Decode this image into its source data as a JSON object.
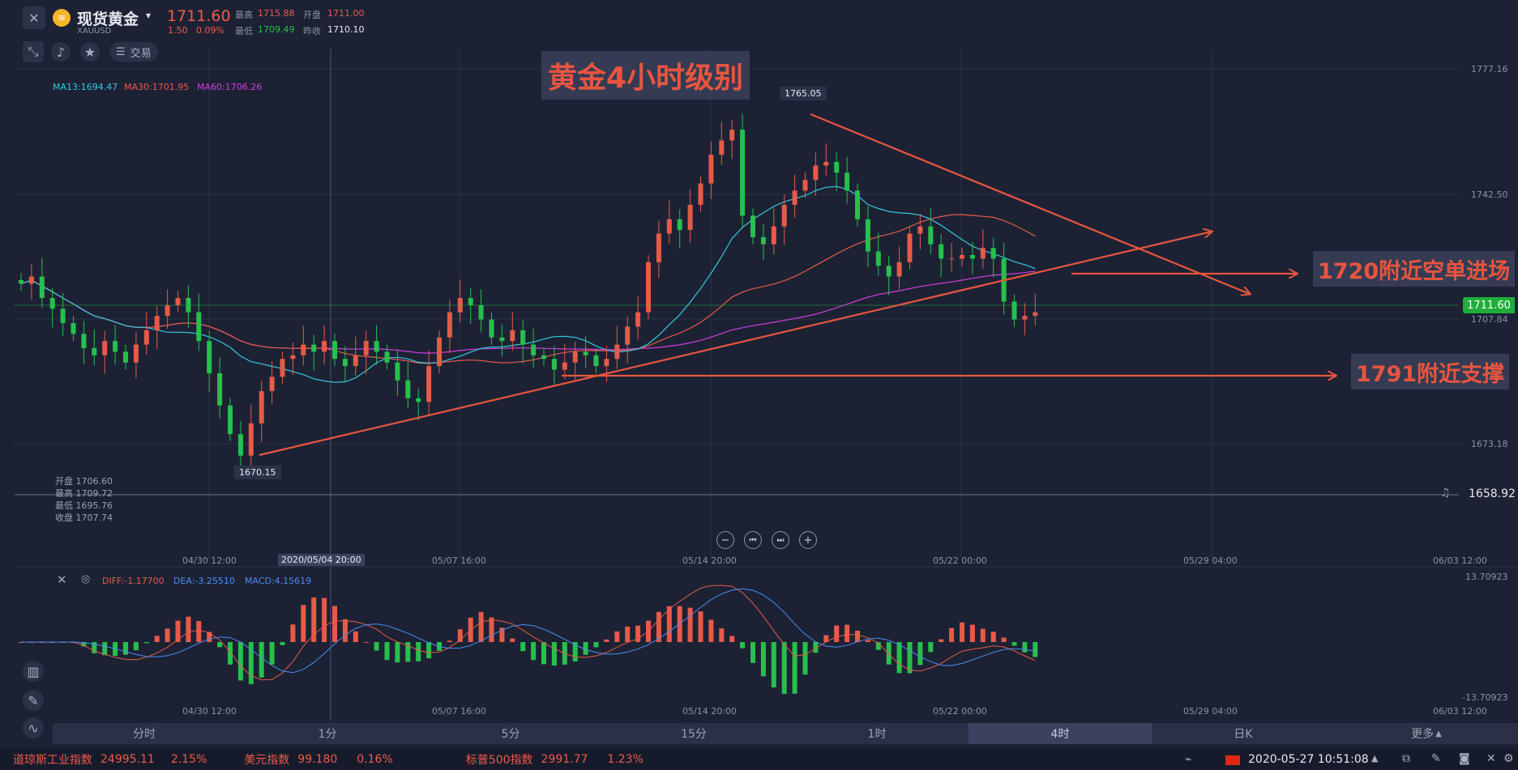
{
  "header": {
    "close_icon": "close-icon",
    "instrument_name": "现货黄金",
    "instrument_code": "XAUUSD",
    "price": "1711.60",
    "change": "1.50",
    "change_pct": "0.09%",
    "high_label": "最高",
    "high_value": "1715.88",
    "open_label": "开盘",
    "open_value": "1711.00",
    "low_label": "最低",
    "low_value": "1709.49",
    "prev_label": "昨收",
    "prev_value": "1710.10",
    "trade_label": "交易"
  },
  "ma_legend": {
    "ma13": "MA13:1694.47",
    "ma30": "MA30:1701.95",
    "ma60": "MA60:1706.26"
  },
  "annotations": {
    "title": "黄金4小时级别",
    "short_entry": "1720附近空单进场",
    "support": "1791附近支撑"
  },
  "crosshair_ohlc": {
    "open": "开盘 1706.60",
    "high": "最高 1709.72",
    "low": "最低 1695.76",
    "close": "收盘 1707.74"
  },
  "price_axis": {
    "ticks": [
      "1777.16",
      "1742.50",
      "1707.84",
      "1673.18"
    ],
    "current": "1711.60",
    "alert": "1658.92"
  },
  "peaks": {
    "high": "1765.05",
    "low": "1670.15"
  },
  "time_axis": {
    "ticks": [
      "04/30 12:00",
      "05/07 16:00",
      "05/14 20:00",
      "05/22 00:00",
      "05/29 04:00",
      "06/03 12:00"
    ],
    "cursor": "2020/05/04 20:00"
  },
  "macd": {
    "diff": "DIFF:-1.17700",
    "dea": "DEA:-3.25510",
    "macd": "MACD:4.15619",
    "max": "13.70923",
    "min": "-13.70923"
  },
  "timeframes": [
    "分时",
    "1分",
    "5分",
    "15分",
    "1时",
    "4时",
    "日K",
    "更多"
  ],
  "active_timeframe": "4时",
  "status": {
    "dow_label": "道琼斯工业指数",
    "dow_value": "24995.11",
    "dow_pct": "2.15%",
    "usd_label": "美元指数",
    "usd_value": "99.180",
    "usd_pct": "0.16%",
    "sp_label": "标普500指数",
    "sp_value": "2991.77",
    "sp_pct": "1.23%",
    "datetime": "2020-05-27 10:51:08"
  },
  "chart_data": {
    "type": "candlestick",
    "ylim": [
      1650,
      1780
    ],
    "series_colors": {
      "ma13": "#35c8e0",
      "ma30": "#e85a48",
      "ma60": "#d23ce0",
      "up": "#e85a48",
      "down": "#27c04c"
    },
    "closes": [
      1720,
      1722,
      1716,
      1713,
      1709,
      1706,
      1702,
      1700,
      1704,
      1701,
      1698,
      1703,
      1707,
      1711,
      1714,
      1716,
      1712,
      1704,
      1695,
      1686,
      1678,
      1672,
      1681,
      1690,
      1694,
      1699,
      1700,
      1703,
      1701,
      1704,
      1699,
      1697,
      1700,
      1704,
      1701,
      1698,
      1693,
      1688,
      1687,
      1697,
      1705,
      1712,
      1716,
      1714,
      1710,
      1705,
      1704,
      1707,
      1703,
      1700,
      1699,
      1696,
      1698,
      1701,
      1700,
      1697,
      1699,
      1703,
      1708,
      1712,
      1726,
      1734,
      1738,
      1735,
      1742,
      1748,
      1756,
      1760,
      1763,
      1739,
      1733,
      1731,
      1736,
      1742,
      1746,
      1749,
      1753,
      1754,
      1751,
      1746,
      1738,
      1729,
      1725,
      1722,
      1726,
      1734,
      1736,
      1731,
      1727,
      1727,
      1728,
      1727,
      1730,
      1727,
      1715,
      1710,
      1711,
      1712
    ]
  }
}
